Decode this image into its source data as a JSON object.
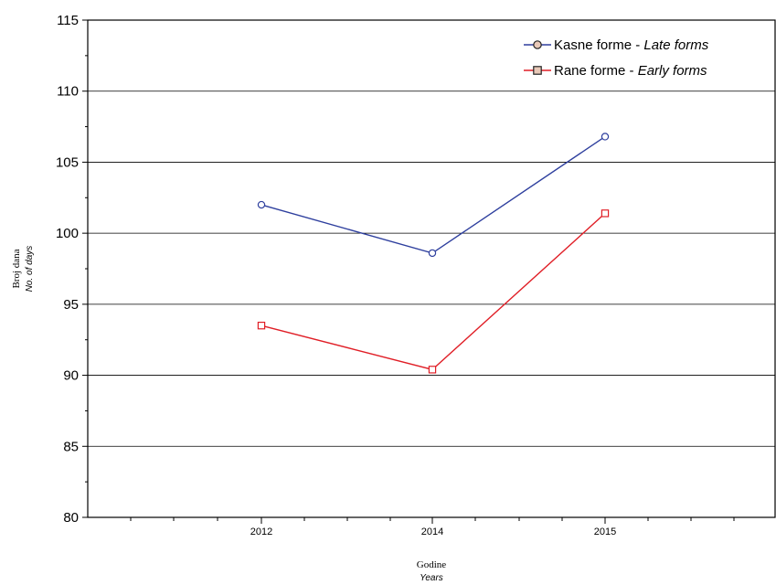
{
  "chart_data": {
    "type": "line",
    "categories": [
      "2012",
      "2014",
      "2015"
    ],
    "series": [
      {
        "name": "Kasne forme - ",
        "name_italic": "Late forms",
        "values": [
          102.0,
          98.6,
          106.8
        ],
        "color": "#2e3f9e",
        "marker": "circle"
      },
      {
        "name": "Rane forme - ",
        "name_italic": "Early forms",
        "values": [
          93.5,
          90.4,
          101.4
        ],
        "color": "#e01e26",
        "marker": "square"
      }
    ],
    "xlabel": "Godine",
    "xlabel_italic": "Years",
    "ylabel": "Broj dana",
    "ylabel_italic": "No. of days",
    "ylim": [
      80,
      115
    ],
    "yticks": [
      80,
      85,
      90,
      95,
      100,
      105,
      110,
      115
    ],
    "grid": "horizontal",
    "legend_position": "top-right"
  }
}
